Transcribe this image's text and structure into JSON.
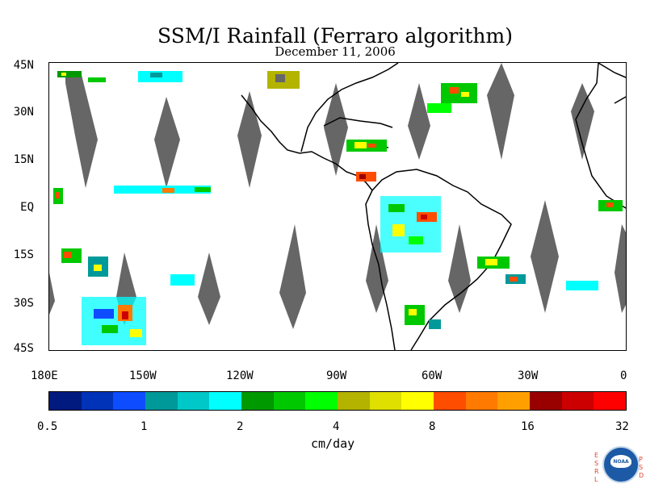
{
  "title": "SSM/I Rainfall (Ferraro algorithm)",
  "date": "December 11, 2006",
  "lat_labels": [
    "45N",
    "30N",
    "15N",
    "EQ",
    "15S",
    "30S",
    "45S"
  ],
  "lon_labels": [
    "180E",
    "150W",
    "120W",
    "90W",
    "60W",
    "30W",
    "0"
  ],
  "colorbar": {
    "units": "cm/day",
    "tick_labels": [
      "0.5",
      "1",
      "2",
      "4",
      "8",
      "16",
      "32"
    ],
    "colors": [
      "#001a80",
      "#0033b8",
      "#0d4dff",
      "#009999",
      "#00c8c8",
      "#00ffff",
      "#009900",
      "#00c800",
      "#00ff00",
      "#b3b300",
      "#dfdf00",
      "#ffff00",
      "#ff4d00",
      "#ff7a00",
      "#ffa000",
      "#990000",
      "#cc0000",
      "#ff0000"
    ]
  },
  "map_colors": {
    "land_outline": "#000000",
    "no_data_swath": "#666666",
    "background": "#ffffff"
  },
  "logo": {
    "left_letters": "ESRL",
    "right_letters": "PSD",
    "text": "NOAA"
  }
}
